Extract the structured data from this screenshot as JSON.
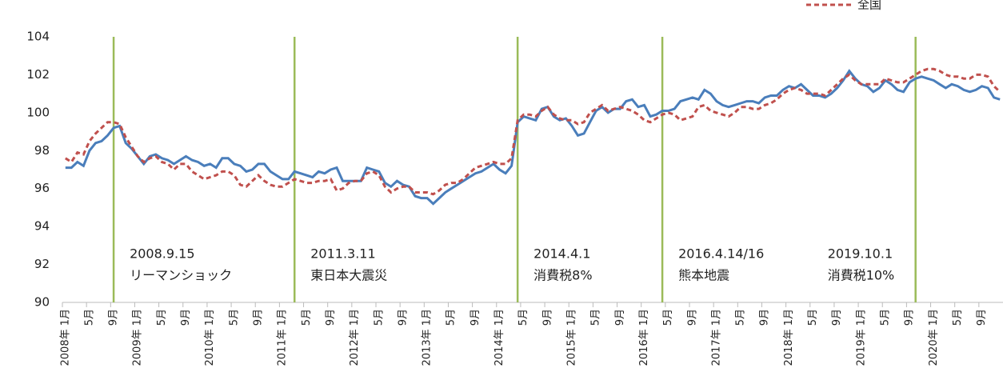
{
  "chart_data": {
    "type": "line",
    "categories": [
      "2008年 1月",
      null,
      null,
      null,
      "5月",
      null,
      null,
      null,
      "9月",
      null,
      null,
      null,
      "2009年 1月",
      null,
      null,
      null,
      "5月",
      null,
      null,
      null,
      "9月",
      null,
      null,
      null,
      "2010年 1月",
      null,
      null,
      null,
      "5月",
      null,
      null,
      null,
      "9月",
      null,
      null,
      null,
      "2011年 1月",
      null,
      null,
      null,
      "5月",
      null,
      null,
      null,
      "9月",
      null,
      null,
      null,
      "2012年 1月",
      null,
      null,
      null,
      "5月",
      null,
      null,
      null,
      "9月",
      null,
      null,
      null,
      "2013年 1月",
      null,
      null,
      null,
      "5月",
      null,
      null,
      null,
      "9月",
      null,
      null,
      null,
      "2014年 1月",
      null,
      null,
      null,
      "5月",
      null,
      null,
      null,
      "9月",
      null,
      null,
      null,
      "2015年 1月",
      null,
      null,
      null,
      "5月",
      null,
      null,
      null,
      "9月",
      null,
      null,
      null,
      "2016年 1月",
      null,
      null,
      null,
      "5月",
      null,
      null,
      null,
      "9月",
      null,
      null,
      null,
      "2017年 1月",
      null,
      null,
      null,
      "5月",
      null,
      null,
      null,
      "9月",
      null,
      null,
      null,
      "2018年 1月",
      null,
      null,
      null,
      "5月",
      null,
      null,
      null,
      "9月",
      null,
      null,
      null,
      "2019年 1月",
      null,
      null,
      null,
      "5月",
      null,
      null,
      null,
      "9月",
      null,
      null,
      null,
      "2020年 1月",
      null,
      null,
      null,
      "5月",
      null,
      null,
      null,
      "9月",
      null,
      null,
      null
    ],
    "series": [
      {
        "color": "#4a7ebb",
        "dashed": false,
        "values": [
          97.1,
          97.1,
          97.4,
          97.2,
          98.0,
          98.4,
          98.5,
          98.8,
          99.2,
          99.3,
          98.4,
          98.1,
          97.7,
          97.3,
          97.7,
          97.8,
          97.6,
          97.5,
          97.3,
          97.5,
          97.7,
          97.5,
          97.4,
          97.2,
          97.3,
          97.1,
          97.6,
          97.6,
          97.3,
          97.2,
          96.9,
          97.0,
          97.3,
          97.3,
          96.9,
          96.7,
          96.5,
          96.5,
          96.9,
          96.8,
          96.7,
          96.6,
          96.9,
          96.8,
          97.0,
          97.1,
          96.4,
          96.4,
          96.4,
          96.4,
          97.1,
          97.0,
          96.9,
          96.3,
          96.1,
          96.4,
          96.2,
          96.1,
          95.6,
          95.5,
          95.5,
          95.2,
          95.5,
          95.8,
          96.0,
          96.2,
          96.4,
          96.6,
          96.8,
          96.9,
          97.1,
          97.3,
          97.0,
          96.8,
          97.2,
          99.5,
          99.8,
          99.7,
          99.6,
          100.2,
          100.3,
          99.8,
          99.6,
          99.7,
          99.3,
          98.8,
          98.9,
          99.5,
          100.1,
          100.3,
          100.0,
          100.2,
          100.2,
          100.6,
          100.7,
          100.3,
          100.4,
          99.8,
          99.9,
          100.1,
          100.1,
          100.2,
          100.6,
          100.7,
          100.8,
          100.7,
          101.2,
          101.0,
          100.6,
          100.4,
          100.3,
          100.4,
          100.5,
          100.6,
          100.6,
          100.5,
          100.8,
          100.9,
          100.9,
          101.2,
          101.4,
          101.3,
          101.5,
          101.2,
          100.9,
          100.9,
          100.8,
          101.0,
          101.3,
          101.7,
          102.2,
          101.8,
          101.5,
          101.4,
          101.1,
          101.3,
          101.7,
          101.5,
          101.2,
          101.1,
          101.6,
          101.8,
          101.9,
          101.8,
          101.7,
          101.5,
          101.3,
          101.5,
          101.4,
          101.2,
          101.1,
          101.2,
          101.4,
          101.3,
          100.8,
          100.7
        ]
      },
      {
        "name": "全国",
        "color": "#c0504d",
        "dashed": true,
        "values": [
          97.6,
          97.4,
          97.9,
          97.8,
          98.5,
          98.9,
          99.2,
          99.5,
          99.5,
          99.4,
          98.7,
          98.2,
          97.7,
          97.4,
          97.6,
          97.7,
          97.4,
          97.3,
          97.0,
          97.3,
          97.3,
          96.9,
          96.7,
          96.5,
          96.6,
          96.7,
          96.9,
          96.9,
          96.7,
          96.2,
          96.1,
          96.4,
          96.7,
          96.4,
          96.2,
          96.1,
          96.1,
          96.3,
          96.5,
          96.4,
          96.3,
          96.3,
          96.4,
          96.4,
          96.5,
          95.9,
          96.0,
          96.3,
          96.4,
          96.4,
          96.8,
          96.9,
          96.7,
          96.1,
          95.8,
          96.0,
          96.1,
          96.1,
          95.8,
          95.8,
          95.8,
          95.7,
          95.9,
          96.2,
          96.3,
          96.3,
          96.5,
          96.8,
          97.1,
          97.2,
          97.3,
          97.4,
          97.3,
          97.3,
          97.6,
          99.6,
          99.9,
          99.9,
          99.8,
          100.1,
          100.3,
          99.9,
          99.7,
          99.6,
          99.6,
          99.4,
          99.5,
          100.0,
          100.2,
          100.4,
          100.1,
          100.2,
          100.3,
          100.2,
          100.1,
          99.9,
          99.6,
          99.5,
          99.7,
          99.9,
          100.0,
          99.9,
          99.6,
          99.7,
          99.8,
          100.3,
          100.4,
          100.1,
          100.0,
          99.9,
          99.8,
          100.0,
          100.3,
          100.3,
          100.2,
          100.2,
          100.4,
          100.5,
          100.7,
          101.0,
          101.2,
          101.3,
          101.2,
          101.0,
          101.0,
          101.0,
          100.9,
          101.2,
          101.5,
          101.8,
          102.0,
          101.7,
          101.5,
          101.5,
          101.5,
          101.5,
          101.8,
          101.7,
          101.6,
          101.6,
          101.8,
          102.0,
          102.2,
          102.3,
          102.3,
          102.2,
          102.0,
          101.9,
          101.9,
          101.8,
          101.8,
          102.0,
          102.0,
          101.9,
          101.4,
          101.1
        ]
      }
    ],
    "ylim": [
      90,
      104
    ],
    "yticks": [
      90,
      92,
      94,
      96,
      98,
      100,
      102,
      104
    ],
    "grid": false,
    "legend": "top-right",
    "annotations": [
      {
        "date": "2008.9.15",
        "text": "リーマンショック"
      },
      {
        "date": "2011.3.11",
        "text": "東日本大震災"
      },
      {
        "date": "2014.4.1",
        "text": "消費税8%"
      },
      {
        "date": "2016.4.14/16",
        "text": "熊本地震"
      },
      {
        "date": "2019.10.1",
        "text": "消費税10%"
      }
    ],
    "annotation_color": "#9bbb59"
  }
}
